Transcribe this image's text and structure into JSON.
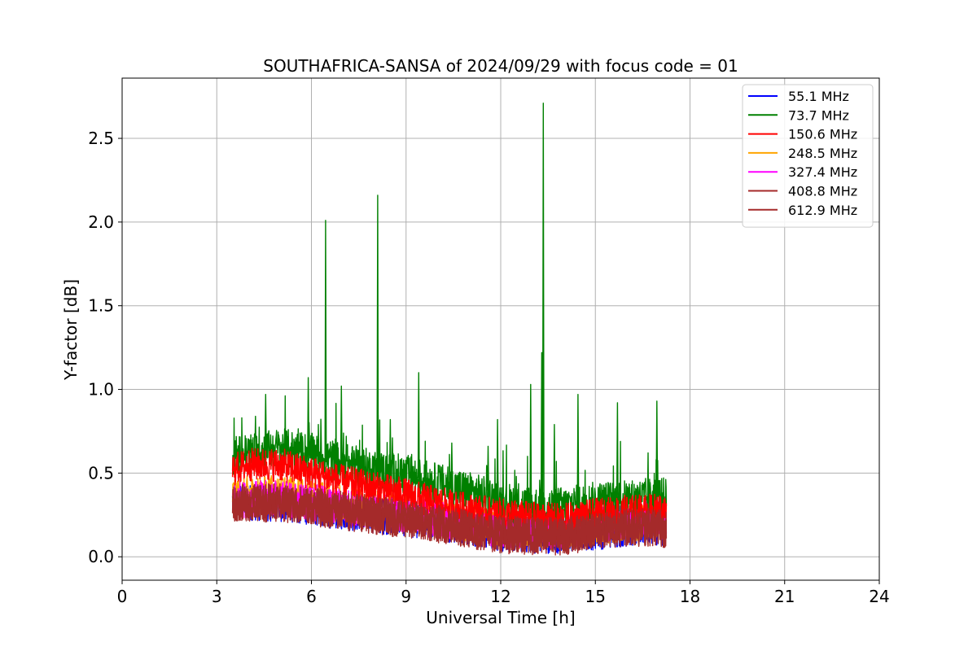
{
  "chart_data": {
    "type": "line",
    "title": "SOUTHAFRICA-SANSA of 2024/09/29 with focus code = 01",
    "xlabel": "Universal Time [h]",
    "ylabel": "Y-factor [dB]",
    "xlim": [
      0,
      24
    ],
    "ylim": [
      -0.14,
      2.86
    ],
    "xticks": [
      "0",
      "3",
      "6",
      "9",
      "12",
      "15",
      "18",
      "21",
      "24"
    ],
    "yticks": [
      "0.0",
      "0.5",
      "1.0",
      "1.5",
      "2.0",
      "2.5"
    ],
    "grid": true,
    "legend_position": "top-right",
    "series": [
      {
        "name": "  55.1 MHz",
        "color": "#0000ff",
        "x": [
          3.5,
          5,
          7,
          9,
          11,
          12,
          13,
          14,
          15,
          16,
          17,
          17.25
        ],
        "y": [
          0.33,
          0.32,
          0.27,
          0.23,
          0.18,
          0.14,
          0.13,
          0.13,
          0.15,
          0.17,
          0.18,
          0.17
        ]
      },
      {
        "name": "  73.7 MHz",
        "color": "#008000",
        "x": [
          3.5,
          4,
          5,
          6,
          7,
          8,
          9,
          10,
          11,
          12,
          13,
          14,
          15,
          16,
          17,
          17.25
        ],
        "y": [
          0.6,
          0.62,
          0.65,
          0.62,
          0.56,
          0.52,
          0.49,
          0.44,
          0.39,
          0.33,
          0.3,
          0.3,
          0.33,
          0.34,
          0.36,
          0.35
        ],
        "peaks": [
          {
            "x": 6.45,
            "y": 2.01
          },
          {
            "x": 8.1,
            "y": 2.16
          },
          {
            "x": 13.35,
            "y": 2.71
          },
          {
            "x": 13.3,
            "y": 1.22
          },
          {
            "x": 9.4,
            "y": 1.1
          },
          {
            "x": 5.9,
            "y": 1.07
          },
          {
            "x": 6.95,
            "y": 1.02
          },
          {
            "x": 12.95,
            "y": 1.03
          },
          {
            "x": 4.55,
            "y": 0.97
          },
          {
            "x": 14.45,
            "y": 0.97
          },
          {
            "x": 16.95,
            "y": 0.93
          },
          {
            "x": 15.7,
            "y": 0.92
          },
          {
            "x": 8.5,
            "y": 0.82
          },
          {
            "x": 11.9,
            "y": 0.82
          },
          {
            "x": 13.7,
            "y": 0.79
          },
          {
            "x": 10.45,
            "y": 0.68
          },
          {
            "x": 11.6,
            "y": 0.66
          }
        ]
      },
      {
        "name": " 150.6 MHz",
        "color": "#ff0000",
        "x": [
          3.5,
          4,
          5,
          6,
          7,
          8,
          9,
          10,
          11,
          12,
          13,
          14,
          15,
          16,
          17,
          17.25
        ],
        "y": [
          0.52,
          0.55,
          0.55,
          0.5,
          0.45,
          0.41,
          0.37,
          0.32,
          0.28,
          0.25,
          0.23,
          0.22,
          0.25,
          0.27,
          0.28,
          0.27
        ]
      },
      {
        "name": " 248.5 MHz",
        "color": "#ffa500",
        "x": [
          3.5,
          5,
          7,
          9,
          11,
          12,
          13,
          14,
          15,
          16,
          17,
          17.25
        ],
        "y": [
          0.37,
          0.38,
          0.32,
          0.26,
          0.2,
          0.17,
          0.15,
          0.15,
          0.18,
          0.2,
          0.21,
          0.2
        ]
      },
      {
        "name": " 327.4 MHz",
        "color": "#ff00ff",
        "x": [
          3.5,
          5,
          7,
          9,
          11,
          12,
          13,
          14,
          15,
          16,
          17,
          17.25
        ],
        "y": [
          0.34,
          0.35,
          0.3,
          0.25,
          0.19,
          0.16,
          0.15,
          0.15,
          0.19,
          0.22,
          0.22,
          0.21
        ]
      },
      {
        "name": " 408.8 MHz",
        "color": "#a52a2a",
        "x": [
          3.5,
          5,
          7,
          9,
          11,
          12,
          13,
          14,
          15,
          16,
          17,
          17.25
        ],
        "y": [
          0.32,
          0.33,
          0.28,
          0.23,
          0.17,
          0.14,
          0.13,
          0.13,
          0.16,
          0.18,
          0.18,
          0.17
        ]
      },
      {
        "name": " 612.9 MHz",
        "color": "#a52a2a",
        "x": [
          3.5,
          5,
          7,
          9,
          11,
          12,
          13,
          14,
          15,
          16,
          17,
          17.25
        ],
        "y": [
          0.31,
          0.32,
          0.27,
          0.22,
          0.16,
          0.13,
          0.12,
          0.12,
          0.15,
          0.17,
          0.17,
          0.16
        ]
      }
    ]
  }
}
